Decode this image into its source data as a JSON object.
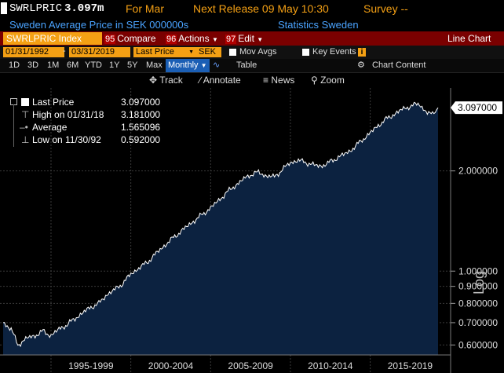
{
  "header": {
    "ticker": "SWRLPRIC",
    "last_value": "3.097m",
    "for_label": "For Mar",
    "next_release": "Next Release 09 May 10:30",
    "survey": "Survey --",
    "description": "Sweden Average Price in SEK 000000s",
    "source": "Statistics Sweden"
  },
  "menu": {
    "security": "SWRLPRIC Index",
    "compare_num": "95",
    "compare_label": "Compare",
    "actions_num": "96",
    "actions_label": "Actions",
    "edit_num": "97",
    "edit_label": "Edit",
    "chart_type": "Line Chart"
  },
  "controls": {
    "start_date": "01/31/1992",
    "end_date": "03/31/2019",
    "field": "Last Price",
    "currency": "SEK",
    "mov_avgs": "Mov Avgs",
    "key_events": "Key Events"
  },
  "periods": [
    "1D",
    "3D",
    "1M",
    "6M",
    "YTD",
    "1Y",
    "5Y",
    "Max"
  ],
  "frequency": "Monthly",
  "table_label": "Table",
  "chart_content_label": "Chart Content",
  "tools": {
    "track": "Track",
    "annotate": "Annotate",
    "news": "News",
    "zoom": "Zoom"
  },
  "legend": {
    "last_price_label": "Last Price",
    "last_price_value": "3.097000",
    "high_label": "High on 01/31/18",
    "high_value": "3.181000",
    "average_label": "Average",
    "average_value": "1.565096",
    "low_label": "Low on 11/30/92",
    "low_value": "0.592000"
  },
  "colors": {
    "background": "#000000",
    "area_fill": "#0c2240",
    "line": "#ffffff",
    "accent_orange": "#f4a014",
    "menu_red": "#7a0000",
    "link_blue": "#4aa3ff"
  },
  "chart_data": {
    "type": "area",
    "title": "SWRLPRIC Index",
    "ylabel": "Log",
    "xlabel": "",
    "scale": "log",
    "ylim": [
      0.56,
      3.55
    ],
    "xlim": [
      1992.0,
      2019.25
    ],
    "y_ticks": [
      0.6,
      0.7,
      0.8,
      0.9,
      1.0,
      2.0
    ],
    "y_tick_labels": [
      "0.600000",
      "0.700000",
      "0.800000",
      "0.900000",
      "1.000000",
      "2.000000"
    ],
    "x_tick_labels": [
      "1995-1999",
      "2000-2004",
      "2005-2009",
      "2010-2014",
      "2015-2019"
    ],
    "last_value_label": "3.097000",
    "grid": true,
    "legend_position": "top-left",
    "series": [
      {
        "name": "Last Price",
        "x": [
          1992.0,
          1992.5,
          1992.92,
          1993.5,
          1994.0,
          1994.5,
          1995.0,
          1995.5,
          1996.0,
          1996.5,
          1997.0,
          1997.5,
          1998.0,
          1998.5,
          1999.0,
          1999.5,
          2000.0,
          2000.5,
          2001.0,
          2001.5,
          2002.0,
          2002.5,
          2003.0,
          2003.5,
          2004.0,
          2004.5,
          2005.0,
          2005.5,
          2006.0,
          2006.5,
          2007.0,
          2007.5,
          2008.0,
          2008.5,
          2009.0,
          2009.5,
          2010.0,
          2010.5,
          2011.0,
          2011.5,
          2012.0,
          2012.5,
          2013.0,
          2013.5,
          2014.0,
          2014.5,
          2015.0,
          2015.5,
          2016.0,
          2016.5,
          2017.0,
          2017.5,
          2018.08,
          2018.5,
          2018.9,
          2019.25
        ],
        "values": [
          0.7,
          0.67,
          0.6,
          0.63,
          0.64,
          0.66,
          0.64,
          0.67,
          0.69,
          0.72,
          0.75,
          0.78,
          0.8,
          0.85,
          0.88,
          0.92,
          0.98,
          1.02,
          1.06,
          1.12,
          1.18,
          1.24,
          1.3,
          1.36,
          1.42,
          1.48,
          1.55,
          1.63,
          1.72,
          1.8,
          1.88,
          1.95,
          1.98,
          1.93,
          1.92,
          2.02,
          2.12,
          2.15,
          2.12,
          2.08,
          2.07,
          2.13,
          2.2,
          2.26,
          2.35,
          2.48,
          2.6,
          2.74,
          2.86,
          2.96,
          3.06,
          3.13,
          3.181,
          3.0,
          2.96,
          3.097
        ]
      }
    ]
  }
}
